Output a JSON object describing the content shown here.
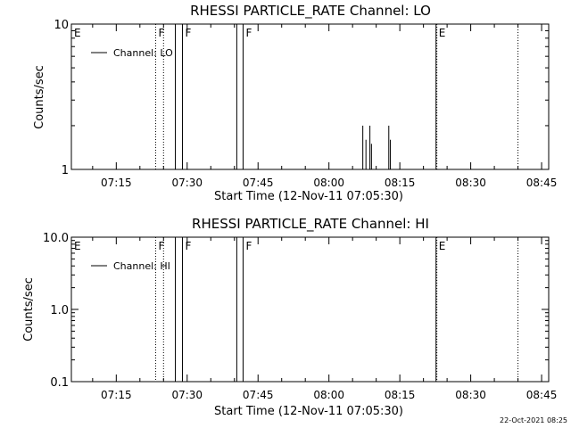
{
  "footer": {
    "timestamp": "22-Oct-2021 08:25"
  },
  "chart_data": [
    {
      "type": "line",
      "title": "RHESSI PARTICLE_RATE Channel: LO",
      "xlabel": "Start Time (12-Nov-11 07:05:30)",
      "ylabel": "Counts/sec",
      "xlim": [
        "07:05:30",
        "08:46:30"
      ],
      "ylim": [
        1,
        10
      ],
      "yscale": "log",
      "x_ticks": [
        "07:15",
        "07:30",
        "07:45",
        "08:00",
        "08:15",
        "08:30",
        "08:45"
      ],
      "y_ticks": [
        "1",
        "10"
      ],
      "legend": {
        "position": "top-left",
        "entries": [
          "Channel: LO"
        ]
      },
      "series": [
        {
          "name": "Channel: LO",
          "points": [
            [
              "08:07:10",
              2.0
            ],
            [
              "08:07:50",
              1.6
            ],
            [
              "08:08:40",
              2.0
            ],
            [
              "08:09:00",
              1.5
            ],
            [
              "08:12:40",
              2.0
            ],
            [
              "08:13:00",
              1.6
            ]
          ]
        }
      ],
      "flag_markers": [
        {
          "label": "E",
          "time": "07:05:30",
          "style": "text"
        },
        {
          "label": "F",
          "time": "07:23:20",
          "style": "dotted"
        },
        {
          "label": "",
          "time": "07:25:00",
          "style": "dotted"
        },
        {
          "label": "",
          "time": "07:27:30",
          "style": "solid"
        },
        {
          "label": "F",
          "time": "07:29:00",
          "style": "solid"
        },
        {
          "label": "",
          "time": "07:40:30",
          "style": "solid"
        },
        {
          "label": "F",
          "time": "07:41:50",
          "style": "solid"
        },
        {
          "label": "E",
          "time": "08:22:40",
          "style": "solid"
        },
        {
          "label": "",
          "time": "08:22:50",
          "style": "dotted"
        },
        {
          "label": "",
          "time": "08:40:00",
          "style": "dotted"
        }
      ]
    },
    {
      "type": "line",
      "title": "RHESSI PARTICLE_RATE Channel: HI",
      "xlabel": "Start Time (12-Nov-11 07:05:30)",
      "ylabel": "Counts/sec",
      "xlim": [
        "07:05:30",
        "08:46:30"
      ],
      "ylim": [
        0.1,
        10
      ],
      "yscale": "log",
      "x_ticks": [
        "07:15",
        "07:30",
        "07:45",
        "08:00",
        "08:15",
        "08:30",
        "08:45"
      ],
      "y_ticks": [
        "0.1",
        "1.0",
        "10.0"
      ],
      "legend": {
        "position": "top-left",
        "entries": [
          "Channel: HI"
        ]
      },
      "series": [
        {
          "name": "Channel: HI",
          "points": []
        }
      ],
      "flag_markers": [
        {
          "label": "E",
          "time": "07:05:30",
          "style": "text"
        },
        {
          "label": "F",
          "time": "07:23:20",
          "style": "dotted"
        },
        {
          "label": "",
          "time": "07:25:00",
          "style": "dotted"
        },
        {
          "label": "",
          "time": "07:27:30",
          "style": "solid"
        },
        {
          "label": "F",
          "time": "07:29:00",
          "style": "solid"
        },
        {
          "label": "",
          "time": "07:40:30",
          "style": "solid"
        },
        {
          "label": "F",
          "time": "07:41:50",
          "style": "solid"
        },
        {
          "label": "E",
          "time": "08:22:40",
          "style": "solid"
        },
        {
          "label": "",
          "time": "08:22:50",
          "style": "dotted"
        },
        {
          "label": "",
          "time": "08:40:00",
          "style": "dotted"
        }
      ]
    }
  ]
}
